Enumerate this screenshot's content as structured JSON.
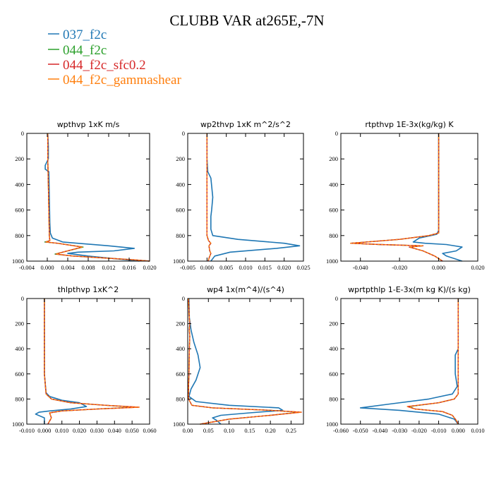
{
  "title": "CLUBB VAR at265E,-7N",
  "colors": {
    "037_f2c": "#1f77b4",
    "044_f2c": "#2ca02c",
    "044_f2c_sfc0.2": "#d62728",
    "044_f2c_gammashear": "#ff7f0e",
    "axis": "#000000"
  },
  "legend": [
    {
      "name": "037_f2c",
      "color": "#1f77b4"
    },
    {
      "name": "044_f2c",
      "color": "#2ca02c"
    },
    {
      "name": "044_f2c_sfc0.2",
      "color": "#d62728"
    },
    {
      "name": "044_f2c_gammashear",
      "color": "#ff7f0e"
    }
  ],
  "chart_data": [
    {
      "type": "line",
      "title": "wpthvp  1xK m/s",
      "xlim": [
        -0.004,
        0.02
      ],
      "ylim": [
        1000,
        0
      ],
      "xticks": [
        -0.004,
        0.0,
        0.004,
        0.008,
        0.012,
        0.016,
        0.02
      ],
      "xtick_labels": [
        "-0.004",
        "0.000",
        "0.004",
        "0.008",
        "0.012",
        "0.016",
        "0.020"
      ],
      "yticks": [
        0,
        200,
        400,
        600,
        800,
        1000
      ],
      "ytick_labels": [
        "0",
        "200",
        "400",
        "600",
        "800",
        "1000"
      ],
      "series": [
        {
          "name": "037_f2c",
          "x": [
            0.0001,
            0.0002,
            0.0002,
            -0.0004,
            -0.0004,
            0.0003,
            0.0004,
            0.0005,
            0.0006,
            0.001,
            0.003,
            0.012,
            0.017,
            0.013,
            0.006,
            0.004,
            0.008,
            0.013,
            0.018
          ],
          "y": [
            0,
            100,
            200,
            250,
            280,
            300,
            500,
            700,
            780,
            820,
            850,
            880,
            900,
            920,
            930,
            940,
            960,
            980,
            1000
          ]
        },
        {
          "name": "044_f2c",
          "x": [
            0.0001,
            0.0001,
            0.0002,
            0.0003,
            0.0004,
            0.0005,
            -0.0005,
            0.002,
            0.007,
            0.003,
            0.0015,
            0.005,
            0.011,
            0.017,
            0.02
          ],
          "y": [
            0,
            200,
            400,
            600,
            800,
            840,
            850,
            860,
            890,
            930,
            945,
            960,
            975,
            990,
            1000
          ]
        },
        {
          "name": "044_f2c_sfc0.2",
          "x": [
            0.0001,
            0.0001,
            0.0002,
            0.0003,
            0.0004,
            0.0005,
            -0.0003,
            0.002,
            0.0068,
            0.003,
            0.0017,
            0.005,
            0.011,
            0.017,
            0.02
          ],
          "y": [
            0,
            200,
            400,
            600,
            800,
            840,
            850,
            860,
            890,
            930,
            945,
            960,
            975,
            990,
            1000
          ]
        },
        {
          "name": "044_f2c_gammashear",
          "x": [
            0.0001,
            0.0001,
            0.0002,
            0.0003,
            0.0004,
            0.0005,
            -0.0003,
            0.002,
            0.0068,
            0.003,
            0.0017,
            0.005,
            0.011,
            0.017,
            0.02
          ],
          "y": [
            0,
            200,
            400,
            600,
            800,
            840,
            850,
            860,
            890,
            930,
            945,
            960,
            975,
            990,
            1000
          ]
        }
      ]
    },
    {
      "type": "line",
      "title": "wp2thvp  1xK m^2/s^2",
      "xlim": [
        -0.005,
        0.025
      ],
      "ylim": [
        1000,
        0
      ],
      "xticks": [
        -0.005,
        0.0,
        0.005,
        0.01,
        0.015,
        0.02,
        0.025
      ],
      "xtick_labels": [
        "-0.005",
        "0.000",
        "0.005",
        "0.010",
        "0.015",
        "0.020",
        "0.025"
      ],
      "yticks": [
        0,
        200,
        400,
        600,
        800,
        1000
      ],
      "ytick_labels": [
        "0",
        "200",
        "400",
        "600",
        "800",
        "1000"
      ],
      "series": [
        {
          "name": "037_f2c",
          "x": [
            0.0,
            0.0,
            0.0002,
            0.001,
            0.0015,
            0.0012,
            0.001,
            0.001,
            0.0015,
            0.008,
            0.02,
            0.024,
            0.018,
            0.006,
            0.002,
            0.001
          ],
          "y": [
            0,
            200,
            300,
            350,
            500,
            600,
            650,
            750,
            800,
            830,
            860,
            880,
            900,
            930,
            960,
            1000
          ]
        },
        {
          "name": "044_f2c",
          "x": [
            0.0,
            0.0,
            0.0,
            0.0,
            0.0,
            0.0004,
            0.001,
            0.0005,
            0.0007,
            0.001,
            0.0006,
            0.0003
          ],
          "y": [
            0,
            200,
            400,
            600,
            800,
            840,
            860,
            880,
            920,
            940,
            970,
            1000
          ]
        },
        {
          "name": "044_f2c_sfc0.2",
          "x": [
            0.0,
            0.0,
            0.0,
            0.0,
            0.0,
            0.0004,
            0.001,
            0.0005,
            0.0007,
            0.001,
            0.0006,
            0.0003
          ],
          "y": [
            0,
            200,
            400,
            600,
            800,
            840,
            860,
            880,
            920,
            940,
            970,
            1000
          ]
        },
        {
          "name": "044_f2c_gammashear",
          "x": [
            0.0,
            0.0,
            0.0,
            0.0,
            0.0,
            0.0004,
            0.001,
            0.0005,
            0.0007,
            0.001,
            0.0006,
            0.0003
          ],
          "y": [
            0,
            200,
            400,
            600,
            800,
            840,
            860,
            880,
            920,
            940,
            970,
            1000
          ]
        }
      ]
    },
    {
      "type": "line",
      "title": "rtpthvp  1E-3x(kg/kg) K",
      "xlim": [
        -0.05,
        0.02
      ],
      "ylim": [
        1000,
        0
      ],
      "xticks": [
        -0.04,
        -0.02,
        0.0,
        0.02
      ],
      "xtick_labels": [
        "-0.040",
        "-0.020",
        "0.000",
        "0.020"
      ],
      "yticks": [
        0,
        200,
        400,
        600,
        800,
        1000
      ],
      "ytick_labels": [
        "0",
        "200",
        "400",
        "600",
        "800",
        "1000"
      ],
      "series": [
        {
          "name": "037_f2c",
          "x": [
            0.0,
            0.0,
            0.0,
            -0.001,
            -0.004,
            -0.01,
            -0.013,
            -0.007,
            0.004,
            0.012,
            0.009,
            0.002,
            0.004,
            0.008,
            0.012
          ],
          "y": [
            0,
            400,
            760,
            790,
            800,
            820,
            850,
            860,
            870,
            890,
            920,
            940,
            960,
            980,
            1000
          ]
        },
        {
          "name": "044_f2c",
          "x": [
            0.0,
            0.0,
            0.0,
            -0.005,
            -0.02,
            -0.045,
            -0.03,
            -0.008,
            -0.015,
            -0.008,
            -0.002,
            0.002
          ],
          "y": [
            0,
            400,
            780,
            800,
            830,
            860,
            870,
            880,
            890,
            920,
            960,
            1000
          ]
        },
        {
          "name": "044_f2c_sfc0.2",
          "x": [
            0.0,
            0.0,
            0.0,
            -0.005,
            -0.02,
            -0.045,
            -0.03,
            -0.008,
            -0.015,
            -0.008,
            -0.002,
            0.002
          ],
          "y": [
            0,
            400,
            780,
            800,
            830,
            860,
            870,
            880,
            890,
            920,
            960,
            1000
          ]
        },
        {
          "name": "044_f2c_gammashear",
          "x": [
            0.0,
            0.0,
            0.0,
            -0.005,
            -0.02,
            -0.045,
            -0.03,
            -0.008,
            -0.015,
            -0.008,
            -0.002,
            0.002
          ],
          "y": [
            0,
            400,
            780,
            800,
            830,
            860,
            870,
            880,
            890,
            920,
            960,
            1000
          ]
        }
      ]
    },
    {
      "type": "line",
      "title": "thlpthvp  1xK^2",
      "xlim": [
        -0.01,
        0.06
      ],
      "ylim": [
        1000,
        0
      ],
      "xticks": [
        -0.01,
        0.0,
        0.01,
        0.02,
        0.03,
        0.04,
        0.05,
        0.06
      ],
      "xtick_labels": [
        "-0.010",
        "0.000",
        "0.010",
        "0.020",
        "0.030",
        "0.040",
        "0.050",
        "0.060"
      ],
      "yticks": [
        0,
        200,
        400,
        600,
        800,
        1000
      ],
      "ytick_labels": [
        "0",
        "200",
        "400",
        "600",
        "800",
        "1000"
      ],
      "series": [
        {
          "name": "037_f2c",
          "x": [
            0.0,
            0.0,
            0.001,
            0.003,
            0.01,
            0.02,
            0.024,
            0.015,
            0.003,
            -0.003,
            -0.005,
            0.0,
            0.0
          ],
          "y": [
            0,
            600,
            750,
            780,
            810,
            830,
            860,
            880,
            895,
            905,
            920,
            950,
            1000
          ]
        },
        {
          "name": "044_f2c",
          "x": [
            0.0,
            0.0,
            0.001,
            0.004,
            0.015,
            0.035,
            0.052,
            0.03,
            0.01,
            0.003,
            0.004,
            0.002
          ],
          "y": [
            0,
            600,
            760,
            800,
            830,
            850,
            865,
            880,
            895,
            910,
            950,
            1000
          ]
        },
        {
          "name": "044_f2c_sfc0.2",
          "x": [
            0.0,
            0.0,
            0.001,
            0.004,
            0.015,
            0.035,
            0.054,
            0.03,
            0.01,
            0.003,
            0.004,
            0.002
          ],
          "y": [
            0,
            600,
            760,
            800,
            830,
            850,
            865,
            880,
            895,
            910,
            950,
            1000
          ]
        },
        {
          "name": "044_f2c_gammashear",
          "x": [
            0.0,
            0.0,
            0.001,
            0.004,
            0.015,
            0.035,
            0.054,
            0.03,
            0.01,
            0.003,
            0.004,
            0.002
          ],
          "y": [
            0,
            600,
            760,
            800,
            830,
            850,
            865,
            880,
            895,
            910,
            950,
            1000
          ]
        }
      ]
    },
    {
      "type": "line",
      "title": "wp4  1x(m^4)/(s^4)",
      "xlim": [
        0.0,
        0.28
      ],
      "ylim": [
        1000,
        0
      ],
      "xticks": [
        0.0,
        0.05,
        0.1,
        0.15,
        0.2,
        0.25
      ],
      "xtick_labels": [
        "0.00",
        "0.05",
        "0.10",
        "0.15",
        "0.20",
        "0.25"
      ],
      "yticks": [
        0,
        200,
        400,
        600,
        800,
        1000
      ],
      "ytick_labels": [
        "0",
        "200",
        "400",
        "600",
        "800",
        "1000"
      ],
      "series": [
        {
          "name": "037_f2c",
          "x": [
            0.003,
            0.004,
            0.008,
            0.015,
            0.025,
            0.03,
            0.02,
            0.008,
            0.003,
            0.02,
            0.1,
            0.22,
            0.23,
            0.15,
            0.08,
            0.06,
            0.07,
            0.08
          ],
          "y": [
            0,
            150,
            250,
            350,
            450,
            550,
            650,
            720,
            780,
            820,
            850,
            870,
            890,
            910,
            930,
            950,
            970,
            1000
          ]
        },
        {
          "name": "044_f2c",
          "x": [
            0.002,
            0.003,
            0.004,
            0.005,
            0.004,
            0.005,
            0.004,
            0.003,
            0.002,
            0.002,
            0.01,
            0.06,
            0.2,
            0.27,
            0.2,
            0.1,
            0.03
          ],
          "y": [
            0,
            100,
            160,
            200,
            250,
            300,
            400,
            600,
            700,
            800,
            850,
            870,
            890,
            905,
            930,
            960,
            1000
          ]
        },
        {
          "name": "044_f2c_sfc0.2",
          "x": [
            0.002,
            0.003,
            0.004,
            0.005,
            0.004,
            0.005,
            0.004,
            0.003,
            0.002,
            0.002,
            0.01,
            0.06,
            0.2,
            0.275,
            0.2,
            0.1,
            0.03
          ],
          "y": [
            0,
            100,
            160,
            200,
            250,
            300,
            400,
            600,
            700,
            800,
            850,
            870,
            890,
            905,
            930,
            960,
            1000
          ]
        },
        {
          "name": "044_f2c_gammashear",
          "x": [
            0.002,
            0.003,
            0.004,
            0.005,
            0.004,
            0.005,
            0.004,
            0.003,
            0.002,
            0.002,
            0.01,
            0.06,
            0.2,
            0.275,
            0.2,
            0.1,
            0.03
          ],
          "y": [
            0,
            100,
            160,
            200,
            250,
            300,
            400,
            600,
            700,
            800,
            850,
            870,
            890,
            905,
            930,
            960,
            1000
          ]
        }
      ]
    },
    {
      "type": "line",
      "title": "wprtpthlp  1-E-3x(m kg K)/(s kg)",
      "xlim": [
        -0.06,
        0.01
      ],
      "ylim": [
        1000,
        0
      ],
      "xticks": [
        -0.06,
        -0.05,
        -0.04,
        -0.03,
        -0.02,
        -0.01,
        0.0,
        0.01
      ],
      "xtick_labels": [
        "-0.060",
        "-0.050",
        "-0.040",
        "-0.030",
        "-0.020",
        "-0.010",
        "0.000",
        "0.010"
      ],
      "yticks": [
        0,
        200,
        400,
        600,
        800,
        1000
      ],
      "ytick_labels": [
        "0",
        "200",
        "400",
        "600",
        "800",
        "1000"
      ],
      "series": [
        {
          "name": "037_f2c",
          "x": [
            0.0,
            0.0,
            -0.0015,
            -0.0015,
            -0.0005,
            -0.003,
            -0.015,
            -0.035,
            -0.05,
            -0.03,
            -0.01,
            -0.002,
            0.0
          ],
          "y": [
            0,
            400,
            450,
            600,
            700,
            760,
            800,
            840,
            870,
            890,
            920,
            960,
            1000
          ]
        },
        {
          "name": "044_f2c",
          "x": [
            0.0,
            0.0,
            0.0,
            -0.002,
            -0.01,
            -0.025,
            -0.022,
            -0.008,
            -0.003,
            -0.001,
            0.0
          ],
          "y": [
            0,
            400,
            760,
            800,
            830,
            860,
            880,
            900,
            930,
            970,
            1000
          ]
        },
        {
          "name": "044_f2c_sfc0.2",
          "x": [
            0.0,
            0.0,
            0.0,
            -0.002,
            -0.01,
            -0.026,
            -0.022,
            -0.008,
            -0.003,
            -0.001,
            0.0
          ],
          "y": [
            0,
            400,
            760,
            800,
            830,
            860,
            880,
            900,
            930,
            970,
            1000
          ]
        },
        {
          "name": "044_f2c_gammashear",
          "x": [
            0.0,
            0.0,
            0.0,
            -0.002,
            -0.01,
            -0.026,
            -0.022,
            -0.008,
            -0.003,
            -0.001,
            0.0
          ],
          "y": [
            0,
            400,
            760,
            800,
            830,
            860,
            880,
            900,
            930,
            970,
            1000
          ]
        }
      ]
    }
  ]
}
